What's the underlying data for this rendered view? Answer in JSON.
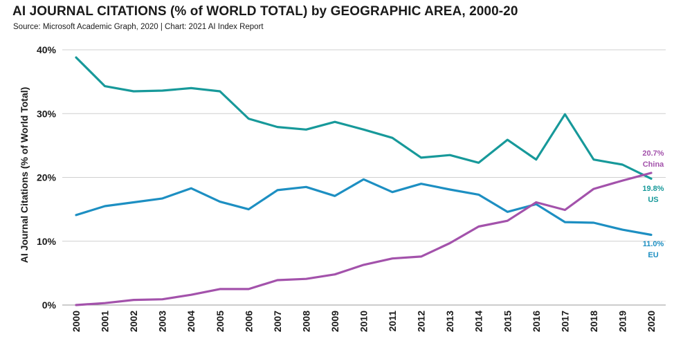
{
  "chart_data": {
    "type": "line",
    "title": "AI JOURNAL CITATIONS (% of WORLD TOTAL) by GEOGRAPHIC AREA, 2000-20",
    "subtitle": "Source: Microsoft Academic Graph, 2020 | Chart: 2021 AI Index Report",
    "ylabel": "AI Journal Citations (% of World Total)",
    "xlabel": "",
    "ylim": [
      0,
      40
    ],
    "yticks": [
      {
        "value": 0,
        "label": "0%"
      },
      {
        "value": 10,
        "label": "10%"
      },
      {
        "value": 20,
        "label": "20%"
      },
      {
        "value": 30,
        "label": "30%"
      },
      {
        "value": 40,
        "label": "40%"
      }
    ],
    "grid": true,
    "categories": [
      "2000",
      "2001",
      "2002",
      "2003",
      "2004",
      "2005",
      "2006",
      "2007",
      "2008",
      "2009",
      "2010",
      "2011",
      "2012",
      "2013",
      "2014",
      "2015",
      "2016",
      "2017",
      "2018",
      "2019",
      "2020"
    ],
    "series": [
      {
        "name": "US",
        "color": "#17999a",
        "values": [
          38.8,
          34.3,
          33.5,
          33.6,
          34.0,
          33.5,
          29.2,
          27.9,
          27.5,
          28.7,
          27.5,
          26.2,
          23.1,
          23.5,
          22.3,
          25.9,
          22.8,
          29.9,
          22.8,
          22.0,
          19.8
        ],
        "end_label_value": "19.8%",
        "end_label_name": "US"
      },
      {
        "name": "EU",
        "color": "#1d8fc2",
        "values": [
          14.1,
          15.5,
          16.1,
          16.7,
          18.3,
          16.2,
          15.0,
          18.0,
          18.5,
          17.1,
          19.7,
          17.7,
          19.0,
          18.1,
          17.3,
          14.6,
          15.8,
          13.0,
          12.9,
          11.8,
          11.0
        ],
        "end_label_value": "11.0%",
        "end_label_name": "EU"
      },
      {
        "name": "China",
        "color": "#a352ab",
        "values": [
          0.0,
          0.3,
          0.8,
          0.9,
          1.6,
          2.5,
          2.5,
          3.9,
          4.1,
          4.8,
          6.3,
          7.3,
          7.6,
          9.7,
          12.3,
          13.2,
          16.1,
          14.9,
          18.2,
          19.5,
          20.7
        ],
        "end_label_value": "20.7%",
        "end_label_name": "China"
      }
    ]
  }
}
